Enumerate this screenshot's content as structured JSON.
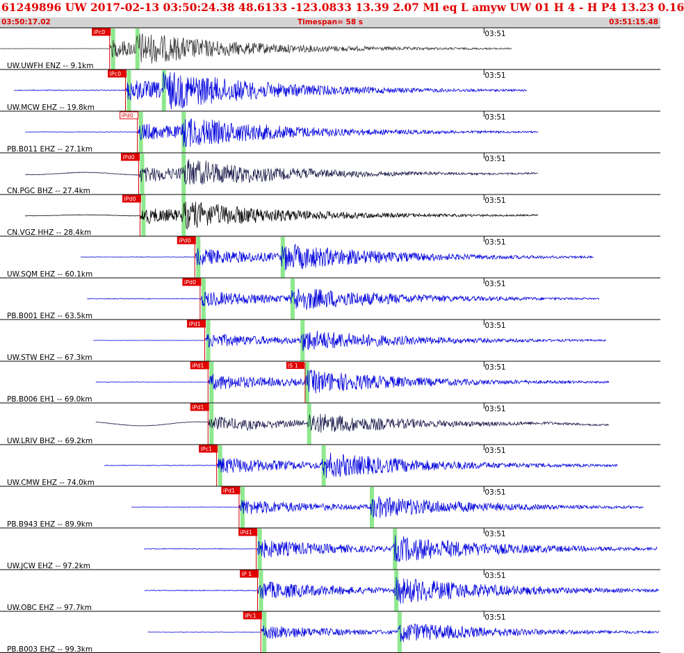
{
  "header": {
    "title": "61249896 UW 2017-02-13 03:50:24.38   48.6133 -123.0833  13.39  2.07 Ml  eq  L amyw    UW 01  H  4  -  H P4   13.23  0.16"
  },
  "timebar": {
    "start": "03:50:17.02",
    "timespan": "Timespan=  58 s",
    "end": "03:51:15.48"
  },
  "minute_tick_label": "03:51",
  "colors": {
    "header_text": "#e00000",
    "timebar_bg": "#d4d4d4",
    "pick_box": "#e00000",
    "window_shade": "#8ee88e",
    "trace_blue": "#0000dd",
    "trace_dark": "#1a1a4a",
    "trace_black": "#000000",
    "trace_gray": "#333333"
  },
  "traces": [
    {
      "label": "UW.UWFH ENZ -- 9.1km",
      "pick": "iPc0",
      "pick_filled": true,
      "color": "trace_gray",
      "amp": 0.55,
      "p": 0.166,
      "s": 0.205,
      "start": 0.0,
      "end": 0.776,
      "noise": 0.02,
      "drift": 0.0
    },
    {
      "label": "UW.MCW EHZ -- 19.8km",
      "pick": "iPc0",
      "pick_filled": true,
      "color": "trace_blue",
      "amp": 0.7,
      "p": 0.19,
      "s": 0.245,
      "start": 0.021,
      "end": 0.798,
      "noise": 0.03,
      "drift": 0.0
    },
    {
      "label": "PB.B011 EHZ -- 27.1km",
      "pick": "iPd0",
      "pick_filled": false,
      "color": "trace_blue",
      "amp": 0.55,
      "p": 0.208,
      "s": 0.275,
      "start": 0.038,
      "end": 0.815,
      "noise": 0.02,
      "drift": 0.0
    },
    {
      "label": "CN.PGC BHZ -- 27.4km",
      "pick": "iPd0",
      "pick_filled": true,
      "color": "trace_dark",
      "amp": 0.5,
      "p": 0.21,
      "s": 0.275,
      "start": 0.038,
      "end": 0.815,
      "noise": 0.03,
      "drift": 0.12
    },
    {
      "label": "CN.VGZ HHZ -- 28.4km",
      "pick": "iPd0",
      "pick_filled": true,
      "color": "trace_black",
      "amp": 0.5,
      "p": 0.212,
      "s": 0.275,
      "start": 0.038,
      "end": 0.815,
      "noise": 0.02,
      "drift": 0.05
    },
    {
      "label": "UW.SQM EHZ -- 60.1km",
      "pick": "iPd0",
      "pick_filled": true,
      "color": "trace_blue",
      "amp": 0.55,
      "p": 0.295,
      "s": 0.425,
      "start": 0.122,
      "end": 0.899,
      "noise": 0.02,
      "drift": 0.0
    },
    {
      "label": "PB.B001 EHZ -- 63.5km",
      "pick": "iPd0",
      "pick_filled": true,
      "color": "trace_blue",
      "amp": 0.5,
      "p": 0.303,
      "s": 0.44,
      "start": 0.132,
      "end": 0.908,
      "noise": 0.03,
      "drift": 0.0
    },
    {
      "label": "UW.STW EHZ -- 67.3km",
      "pick": "iPd1",
      "pick_filled": true,
      "color": "trace_blue",
      "amp": 0.45,
      "p": 0.31,
      "s": 0.455,
      "start": 0.141,
      "end": 0.918,
      "noise": 0.02,
      "drift": 0.0
    },
    {
      "label": "PB.B006 EH1 -- 69.0km",
      "pick": "iPd1",
      "pick_filled": true,
      "color": "trace_blue",
      "amp": 0.5,
      "p": 0.315,
      "s": 0.462,
      "start": 0.145,
      "end": 0.922,
      "noise": 0.02,
      "drift": 0.0
    },
    {
      "label": "UW.LRIV BHZ -- 69.2km",
      "pick": "iPd1",
      "pick_filled": true,
      "color": "trace_dark",
      "amp": 0.45,
      "p": 0.315,
      "s": 0.465,
      "start": 0.145,
      "end": 0.922,
      "noise": 0.03,
      "drift": 0.18
    },
    {
      "label": "UW.CMW EHZ -- 74.0km",
      "pick": "iPc1",
      "pick_filled": true,
      "color": "trace_blue",
      "amp": 0.55,
      "p": 0.328,
      "s": 0.487,
      "start": 0.158,
      "end": 0.935,
      "noise": 0.03,
      "drift": 0.0
    },
    {
      "label": "PB.B943 EHZ -- 89.9km",
      "pick": "iPd1",
      "pick_filled": true,
      "color": "trace_blue",
      "amp": 0.5,
      "p": 0.362,
      "s": 0.56,
      "start": 0.199,
      "end": 0.975,
      "noise": 0.02,
      "drift": 0.0
    },
    {
      "label": "UW.JCW EHZ -- 97.2km",
      "pick": "iPd1",
      "pick_filled": true,
      "color": "trace_blue",
      "amp": 0.6,
      "p": 0.388,
      "s": 0.595,
      "start": 0.218,
      "end": 0.995,
      "noise": 0.03,
      "drift": 0.0
    },
    {
      "label": "UW.OBC EHZ -- 97.7km",
      "pick": "iP 1",
      "pick_filled": true,
      "color": "trace_blue",
      "amp": 0.6,
      "p": 0.39,
      "s": 0.597,
      "start": 0.219,
      "end": 0.998,
      "noise": 0.03,
      "drift": 0.0
    },
    {
      "label": "PB.B003 EHZ -- 99.3km",
      "pick": "iPc1",
      "pick_filled": true,
      "color": "trace_blue",
      "amp": 0.45,
      "p": 0.395,
      "s": 0.602,
      "start": 0.224,
      "end": 0.998,
      "noise": 0.02,
      "drift": 0.0
    }
  ],
  "extra_picks": [
    {
      "trace_index": 8,
      "label": "iS 1"
    }
  ],
  "minute_tick_fraction": 0.733
}
